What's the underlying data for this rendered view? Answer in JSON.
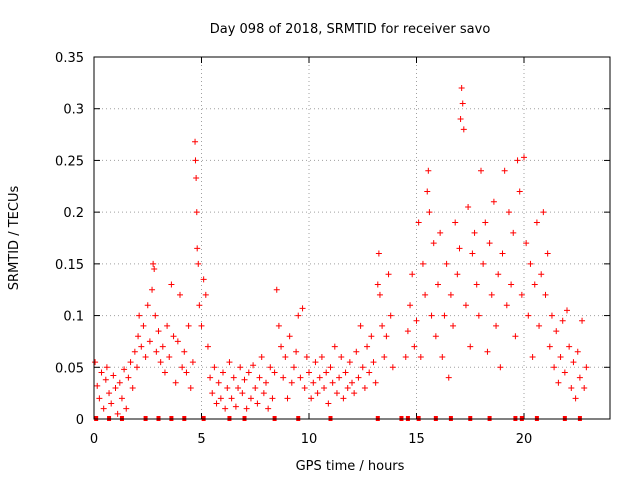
{
  "chart_data": {
    "type": "scatter",
    "title": "Day 098 of 2018, SRMTID for receiver savo",
    "xlabel": "GPS time / hours",
    "ylabel": "SRMTID / TECUs",
    "xlim": [
      0,
      24
    ],
    "ylim": [
      0,
      0.35
    ],
    "xticks": [
      {
        "value": 0,
        "label": "0"
      },
      {
        "value": 5,
        "label": "5"
      },
      {
        "value": 10,
        "label": "10"
      },
      {
        "value": 15,
        "label": "15"
      },
      {
        "value": 20,
        "label": "20"
      }
    ],
    "yticks": [
      {
        "value": 0,
        "label": "0"
      },
      {
        "value": 0.05,
        "label": "0.05"
      },
      {
        "value": 0.1,
        "label": "0.1"
      },
      {
        "value": 0.15,
        "label": "0.15"
      },
      {
        "value": 0.2,
        "label": "0.2"
      },
      {
        "value": 0.25,
        "label": "0.25"
      },
      {
        "value": 0.3,
        "label": "0.3"
      },
      {
        "value": 0.35,
        "label": "0.35"
      }
    ],
    "grid": true,
    "marker": "plus",
    "color": "#ff0000",
    "series": [
      {
        "name": "SRMTID",
        "points": [
          [
            0.05,
            0.055
          ],
          [
            0.15,
            0.032
          ],
          [
            0.25,
            0.02
          ],
          [
            0.35,
            0.045
          ],
          [
            0.45,
            0.01
          ],
          [
            0.55,
            0.038
          ],
          [
            0.6,
            0.05
          ],
          [
            0.7,
            0.025
          ],
          [
            0.8,
            0.015
          ],
          [
            0.9,
            0.042
          ],
          [
            1.0,
            0.03
          ],
          [
            1.1,
            0.005
          ],
          [
            1.2,
            0.035
          ],
          [
            1.3,
            0.02
          ],
          [
            1.4,
            0.048
          ],
          [
            1.5,
            0.01
          ],
          [
            1.6,
            0.04
          ],
          [
            1.7,
            0.055
          ],
          [
            1.8,
            0.03
          ],
          [
            1.9,
            0.065
          ],
          [
            2.0,
            0.05
          ],
          [
            2.05,
            0.08
          ],
          [
            2.1,
            0.1
          ],
          [
            2.2,
            0.07
          ],
          [
            2.3,
            0.09
          ],
          [
            2.4,
            0.06
          ],
          [
            2.5,
            0.11
          ],
          [
            2.6,
            0.075
          ],
          [
            2.7,
            0.125
          ],
          [
            2.75,
            0.15
          ],
          [
            2.8,
            0.145
          ],
          [
            2.85,
            0.1
          ],
          [
            2.9,
            0.065
          ],
          [
            3.0,
            0.085
          ],
          [
            3.1,
            0.055
          ],
          [
            3.2,
            0.07
          ],
          [
            3.3,
            0.045
          ],
          [
            3.4,
            0.09
          ],
          [
            3.5,
            0.06
          ],
          [
            3.6,
            0.13
          ],
          [
            3.7,
            0.08
          ],
          [
            3.8,
            0.035
          ],
          [
            3.9,
            0.075
          ],
          [
            4.0,
            0.12
          ],
          [
            4.1,
            0.05
          ],
          [
            4.2,
            0.065
          ],
          [
            4.3,
            0.045
          ],
          [
            4.4,
            0.09
          ],
          [
            4.5,
            0.03
          ],
          [
            4.6,
            0.055
          ],
          [
            4.7,
            0.268
          ],
          [
            4.72,
            0.25
          ],
          [
            4.75,
            0.233
          ],
          [
            4.78,
            0.2
          ],
          [
            4.8,
            0.165
          ],
          [
            4.85,
            0.15
          ],
          [
            4.9,
            0.11
          ],
          [
            5.0,
            0.09
          ],
          [
            5.1,
            0.135
          ],
          [
            5.2,
            0.12
          ],
          [
            5.3,
            0.07
          ],
          [
            5.4,
            0.04
          ],
          [
            5.5,
            0.025
          ],
          [
            5.6,
            0.05
          ],
          [
            5.7,
            0.015
          ],
          [
            5.8,
            0.035
          ],
          [
            5.9,
            0.02
          ],
          [
            6.0,
            0.045
          ],
          [
            6.1,
            0.01
          ],
          [
            6.2,
            0.03
          ],
          [
            6.3,
            0.055
          ],
          [
            6.4,
            0.02
          ],
          [
            6.5,
            0.04
          ],
          [
            6.6,
            0.012
          ],
          [
            6.7,
            0.03
          ],
          [
            6.8,
            0.05
          ],
          [
            6.9,
            0.025
          ],
          [
            7.0,
            0.038
          ],
          [
            7.1,
            0.01
          ],
          [
            7.2,
            0.045
          ],
          [
            7.3,
            0.02
          ],
          [
            7.4,
            0.052
          ],
          [
            7.5,
            0.03
          ],
          [
            7.6,
            0.015
          ],
          [
            7.7,
            0.04
          ],
          [
            7.8,
            0.06
          ],
          [
            7.9,
            0.025
          ],
          [
            8.0,
            0.035
          ],
          [
            8.1,
            0.01
          ],
          [
            8.2,
            0.05
          ],
          [
            8.3,
            0.02
          ],
          [
            8.4,
            0.045
          ],
          [
            8.5,
            0.125
          ],
          [
            8.6,
            0.09
          ],
          [
            8.7,
            0.07
          ],
          [
            8.8,
            0.04
          ],
          [
            8.9,
            0.06
          ],
          [
            9.0,
            0.02
          ],
          [
            9.1,
            0.08
          ],
          [
            9.2,
            0.035
          ],
          [
            9.3,
            0.05
          ],
          [
            9.4,
            0.065
          ],
          [
            9.5,
            0.1
          ],
          [
            9.6,
            0.04
          ],
          [
            9.7,
            0.107
          ],
          [
            9.8,
            0.03
          ],
          [
            9.9,
            0.06
          ],
          [
            10.0,
            0.045
          ],
          [
            10.1,
            0.02
          ],
          [
            10.2,
            0.035
          ],
          [
            10.3,
            0.055
          ],
          [
            10.4,
            0.025
          ],
          [
            10.5,
            0.04
          ],
          [
            10.6,
            0.06
          ],
          [
            10.7,
            0.03
          ],
          [
            10.8,
            0.045
          ],
          [
            10.9,
            0.015
          ],
          [
            11.0,
            0.05
          ],
          [
            11.1,
            0.035
          ],
          [
            11.2,
            0.07
          ],
          [
            11.3,
            0.025
          ],
          [
            11.4,
            0.04
          ],
          [
            11.5,
            0.06
          ],
          [
            11.6,
            0.02
          ],
          [
            11.7,
            0.045
          ],
          [
            11.8,
            0.03
          ],
          [
            11.9,
            0.055
          ],
          [
            12.0,
            0.035
          ],
          [
            12.1,
            0.025
          ],
          [
            12.2,
            0.065
          ],
          [
            12.3,
            0.04
          ],
          [
            12.4,
            0.09
          ],
          [
            12.5,
            0.05
          ],
          [
            12.6,
            0.03
          ],
          [
            12.7,
            0.07
          ],
          [
            12.8,
            0.045
          ],
          [
            12.9,
            0.08
          ],
          [
            13.0,
            0.055
          ],
          [
            13.1,
            0.035
          ],
          [
            13.2,
            0.13
          ],
          [
            13.25,
            0.16
          ],
          [
            13.3,
            0.12
          ],
          [
            13.4,
            0.09
          ],
          [
            13.5,
            0.06
          ],
          [
            13.6,
            0.08
          ],
          [
            13.7,
            0.14
          ],
          [
            13.8,
            0.1
          ],
          [
            13.9,
            0.05
          ],
          [
            14.5,
            0.06
          ],
          [
            14.6,
            0.085
          ],
          [
            14.7,
            0.11
          ],
          [
            14.8,
            0.14
          ],
          [
            14.9,
            0.07
          ],
          [
            15.0,
            0.095
          ],
          [
            15.1,
            0.19
          ],
          [
            15.2,
            0.06
          ],
          [
            15.3,
            0.15
          ],
          [
            15.4,
            0.12
          ],
          [
            15.5,
            0.22
          ],
          [
            15.55,
            0.24
          ],
          [
            15.6,
            0.2
          ],
          [
            15.7,
            0.1
          ],
          [
            15.8,
            0.17
          ],
          [
            15.9,
            0.08
          ],
          [
            16.0,
            0.13
          ],
          [
            16.1,
            0.18
          ],
          [
            16.2,
            0.06
          ],
          [
            16.3,
            0.1
          ],
          [
            16.4,
            0.15
          ],
          [
            16.5,
            0.04
          ],
          [
            16.6,
            0.12
          ],
          [
            16.7,
            0.09
          ],
          [
            16.8,
            0.19
          ],
          [
            16.9,
            0.14
          ],
          [
            17.0,
            0.165
          ],
          [
            17.05,
            0.29
          ],
          [
            17.1,
            0.32
          ],
          [
            17.15,
            0.305
          ],
          [
            17.2,
            0.28
          ],
          [
            17.3,
            0.11
          ],
          [
            17.4,
            0.205
          ],
          [
            17.5,
            0.07
          ],
          [
            17.6,
            0.16
          ],
          [
            17.7,
            0.18
          ],
          [
            17.8,
            0.13
          ],
          [
            17.9,
            0.1
          ],
          [
            18.0,
            0.24
          ],
          [
            18.1,
            0.15
          ],
          [
            18.2,
            0.19
          ],
          [
            18.3,
            0.065
          ],
          [
            18.4,
            0.17
          ],
          [
            18.5,
            0.12
          ],
          [
            18.6,
            0.21
          ],
          [
            18.7,
            0.09
          ],
          [
            18.8,
            0.14
          ],
          [
            18.9,
            0.05
          ],
          [
            19.0,
            0.16
          ],
          [
            19.1,
            0.24
          ],
          [
            19.2,
            0.11
          ],
          [
            19.3,
            0.2
          ],
          [
            19.4,
            0.13
          ],
          [
            19.5,
            0.18
          ],
          [
            19.6,
            0.08
          ],
          [
            19.7,
            0.25
          ],
          [
            19.8,
            0.22
          ],
          [
            19.9,
            0.12
          ],
          [
            20.0,
            0.253
          ],
          [
            20.1,
            0.17
          ],
          [
            20.2,
            0.1
          ],
          [
            20.3,
            0.15
          ],
          [
            20.4,
            0.06
          ],
          [
            20.5,
            0.13
          ],
          [
            20.6,
            0.19
          ],
          [
            20.7,
            0.09
          ],
          [
            20.8,
            0.14
          ],
          [
            20.9,
            0.2
          ],
          [
            21.0,
            0.12
          ],
          [
            21.1,
            0.16
          ],
          [
            21.2,
            0.07
          ],
          [
            21.3,
            0.1
          ],
          [
            21.4,
            0.05
          ],
          [
            21.5,
            0.085
          ],
          [
            21.6,
            0.035
          ],
          [
            21.7,
            0.06
          ],
          [
            21.8,
            0.095
          ],
          [
            21.9,
            0.045
          ],
          [
            22.0,
            0.105
          ],
          [
            22.1,
            0.07
          ],
          [
            22.2,
            0.03
          ],
          [
            22.3,
            0.055
          ],
          [
            22.4,
            0.02
          ],
          [
            22.5,
            0.065
          ],
          [
            22.6,
            0.04
          ],
          [
            22.7,
            0.095
          ],
          [
            22.8,
            0.03
          ],
          [
            22.9,
            0.05
          ],
          [
            0.1,
            0.0
          ],
          [
            0.7,
            0.0
          ],
          [
            1.3,
            0.0
          ],
          [
            2.4,
            0.0
          ],
          [
            3.0,
            0.0
          ],
          [
            3.6,
            0.0
          ],
          [
            4.2,
            0.0
          ],
          [
            5.1,
            0.0
          ],
          [
            6.3,
            0.0
          ],
          [
            7.0,
            0.0
          ],
          [
            8.4,
            0.0
          ],
          [
            9.5,
            0.0
          ],
          [
            11.0,
            0.0
          ],
          [
            13.2,
            0.0
          ],
          [
            14.3,
            0.0
          ],
          [
            14.6,
            0.0
          ],
          [
            15.1,
            0.0
          ],
          [
            15.9,
            0.0
          ],
          [
            16.6,
            0.0
          ],
          [
            17.5,
            0.0
          ],
          [
            18.4,
            0.0
          ],
          [
            19.6,
            0.0
          ],
          [
            19.9,
            0.0
          ],
          [
            20.6,
            0.0
          ],
          [
            21.9,
            0.0
          ],
          [
            22.6,
            0.0
          ]
        ]
      }
    ]
  }
}
